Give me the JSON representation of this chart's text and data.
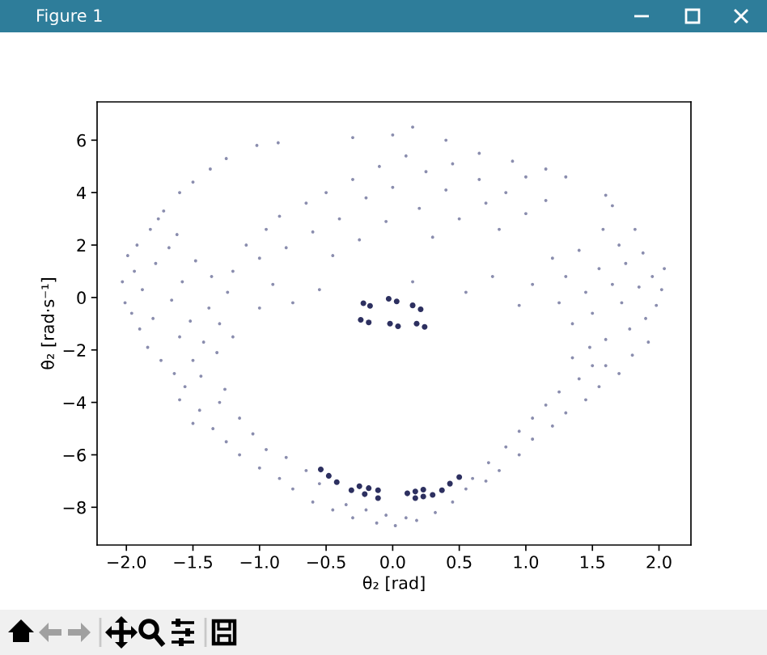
{
  "chart_data": {
    "type": "scatter",
    "xlabel": "θ₂ [rad]",
    "ylabel": "θ̇₂ [rad·s⁻¹]",
    "annotations": [
      "Figure 1"
    ],
    "xlim": [
      -2.22,
      2.24
    ],
    "ylim": [
      -9.44,
      7.46
    ],
    "xticks": [
      {
        "value": -2,
        "label": "−2.0"
      },
      {
        "value": -1.5,
        "label": "−1.5"
      },
      {
        "value": -1,
        "label": "−1.0"
      },
      {
        "value": -0.5,
        "label": "−0.5"
      },
      {
        "value": 0,
        "label": "0.0"
      },
      {
        "value": 0.5,
        "label": "0.5"
      },
      {
        "value": 1,
        "label": "1.0"
      },
      {
        "value": 1.5,
        "label": "1.5"
      },
      {
        "value": 2,
        "label": "2.0"
      }
    ],
    "yticks": [
      {
        "value": -8,
        "label": "−8"
      },
      {
        "value": -6,
        "label": "−6"
      },
      {
        "value": -4,
        "label": "−4"
      },
      {
        "value": -2,
        "label": "−2"
      },
      0,
      2,
      4,
      6
    ],
    "marker": "circle",
    "grid": false,
    "series": [
      {
        "color": "#8a8dae",
        "x": [
          -2.03,
          -2.01,
          -1.99,
          -1.96,
          -1.94,
          -1.92,
          -1.9,
          -1.88,
          -1.84,
          -1.82,
          -1.8,
          -1.78,
          -1.76,
          -1.74,
          -1.72,
          -1.68,
          -1.66,
          -1.64,
          -1.62,
          -1.6,
          -1.58,
          -1.56,
          -1.52,
          -1.5,
          -1.48,
          -1.44,
          -1.42,
          -1.38,
          -1.36,
          -1.32,
          -1.3,
          -1.26,
          -1.24,
          -1.2,
          -1.6,
          -1.45,
          -1.3,
          -1.5,
          -1.35,
          -1.15,
          -1.25,
          -1.05,
          -1.15,
          -0.95,
          -0.8,
          -1.0,
          -0.85,
          -0.65,
          -0.75,
          -0.55,
          -0.6,
          -0.45,
          -0.35,
          -0.3,
          -0.2,
          -0.12,
          -0.05,
          0.02,
          0.1,
          0.18,
          0.32,
          0.45,
          0.55,
          0.6,
          0.7,
          0.72,
          0.8,
          0.85,
          0.95,
          0.95,
          1.05,
          1.05,
          1.2,
          1.15,
          1.3,
          1.25,
          1.45,
          1.4,
          1.55,
          1.5,
          1.7,
          1.35,
          1.2,
          1.3,
          1.25,
          1.4,
          1.45,
          1.35,
          1.5,
          1.55,
          1.6,
          1.48,
          1.65,
          1.7,
          1.72,
          1.75,
          1.78,
          1.8,
          1.85,
          1.88,
          1.9,
          1.92,
          1.95,
          1.98,
          2.02,
          2.04,
          1.6,
          1.82,
          1.58,
          -1.6,
          -1.5,
          -1.37,
          -1.25,
          -1.02,
          -0.86,
          -0.3,
          0.0,
          0.15,
          0.4,
          0.65,
          0.9,
          1.15,
          1.3,
          1.6,
          1.65,
          -1.2,
          -1.1,
          -1.0,
          -1.0,
          -0.95,
          -0.9,
          -0.85,
          -0.8,
          -0.75,
          -0.65,
          -0.6,
          -0.55,
          -0.5,
          -0.45,
          -0.4,
          -0.3,
          -0.25,
          -0.2,
          -0.1,
          -0.05,
          0.0,
          0.1,
          0.15,
          0.2,
          0.25,
          0.3,
          0.4,
          0.45,
          0.5,
          0.55,
          0.65,
          0.7,
          0.75,
          0.8,
          0.85,
          0.95,
          1.0,
          1.05,
          1.15,
          1.0
        ],
        "values": [
          0.6,
          -0.2,
          1.6,
          -0.6,
          1.0,
          2.0,
          -1.2,
          0.3,
          -1.9,
          2.6,
          -0.8,
          1.3,
          3.0,
          -2.4,
          3.3,
          1.9,
          -0.1,
          -2.9,
          2.4,
          -1.5,
          0.6,
          -3.4,
          -0.9,
          -2.4,
          1.4,
          -3.0,
          -1.7,
          -0.4,
          0.8,
          -2.1,
          -1.0,
          -3.5,
          0.2,
          -1.5,
          -3.9,
          -4.3,
          -4.0,
          -4.8,
          -5.0,
          -4.6,
          -5.5,
          -5.2,
          -6.0,
          -5.8,
          -6.1,
          -6.5,
          -6.9,
          -6.6,
          -7.3,
          -7.1,
          -7.8,
          -8.1,
          -7.9,
          -8.4,
          -8.1,
          -8.6,
          -8.3,
          -8.7,
          -8.4,
          -8.5,
          -8.2,
          -7.8,
          -7.3,
          -6.9,
          -7.0,
          -6.3,
          -6.6,
          -5.7,
          -6.0,
          -5.1,
          -5.4,
          -4.6,
          -4.9,
          -4.1,
          -4.4,
          -3.6,
          -3.9,
          -3.1,
          -3.4,
          -2.6,
          -2.9,
          -2.3,
          1.5,
          0.8,
          -0.2,
          1.8,
          0.2,
          -1.0,
          -0.6,
          1.1,
          -1.6,
          -1.9,
          0.5,
          2.0,
          -0.2,
          1.3,
          -1.2,
          -2.2,
          0.4,
          1.7,
          -0.8,
          -1.7,
          0.8,
          -0.3,
          0.3,
          1.1,
          -2.6,
          2.6,
          2.6,
          4.0,
          4.4,
          4.9,
          5.3,
          5.8,
          5.9,
          6.1,
          6.2,
          6.5,
          6.0,
          5.5,
          5.2,
          4.9,
          4.6,
          3.9,
          3.5,
          1.0,
          2.0,
          -0.4,
          1.5,
          2.6,
          0.5,
          3.1,
          1.9,
          -0.2,
          3.6,
          2.5,
          0.3,
          4.0,
          1.6,
          3.0,
          4.5,
          2.2,
          3.8,
          5.0,
          2.9,
          4.2,
          5.4,
          0.6,
          3.4,
          4.8,
          2.3,
          4.1,
          5.1,
          3.0,
          0.2,
          4.5,
          3.6,
          0.8,
          2.6,
          4.0,
          -0.3,
          3.2,
          0.5,
          3.7,
          4.6
        ]
      },
      {
        "color": "#2d3060",
        "x": [
          -0.22,
          -0.17,
          -0.24,
          -0.18,
          -0.03,
          0.03,
          0.15,
          0.21,
          -0.02,
          0.04,
          0.18,
          0.24,
          -0.54,
          -0.48,
          -0.42,
          -0.31,
          -0.21,
          -0.11,
          -0.25,
          -0.18,
          -0.11,
          0.11,
          0.17,
          0.23,
          0.17,
          0.23,
          0.3,
          0.37,
          0.43,
          0.5
        ],
        "values": [
          -0.22,
          -0.32,
          -0.85,
          -0.95,
          -0.05,
          -0.15,
          -0.3,
          -0.45,
          -1.0,
          -1.1,
          -1.0,
          -1.12,
          -6.56,
          -6.8,
          -7.04,
          -7.35,
          -7.5,
          -7.65,
          -7.2,
          -7.27,
          -7.35,
          -7.47,
          -7.4,
          -7.33,
          -7.65,
          -7.59,
          -7.53,
          -7.35,
          -7.1,
          -6.85
        ]
      }
    ]
  }
}
